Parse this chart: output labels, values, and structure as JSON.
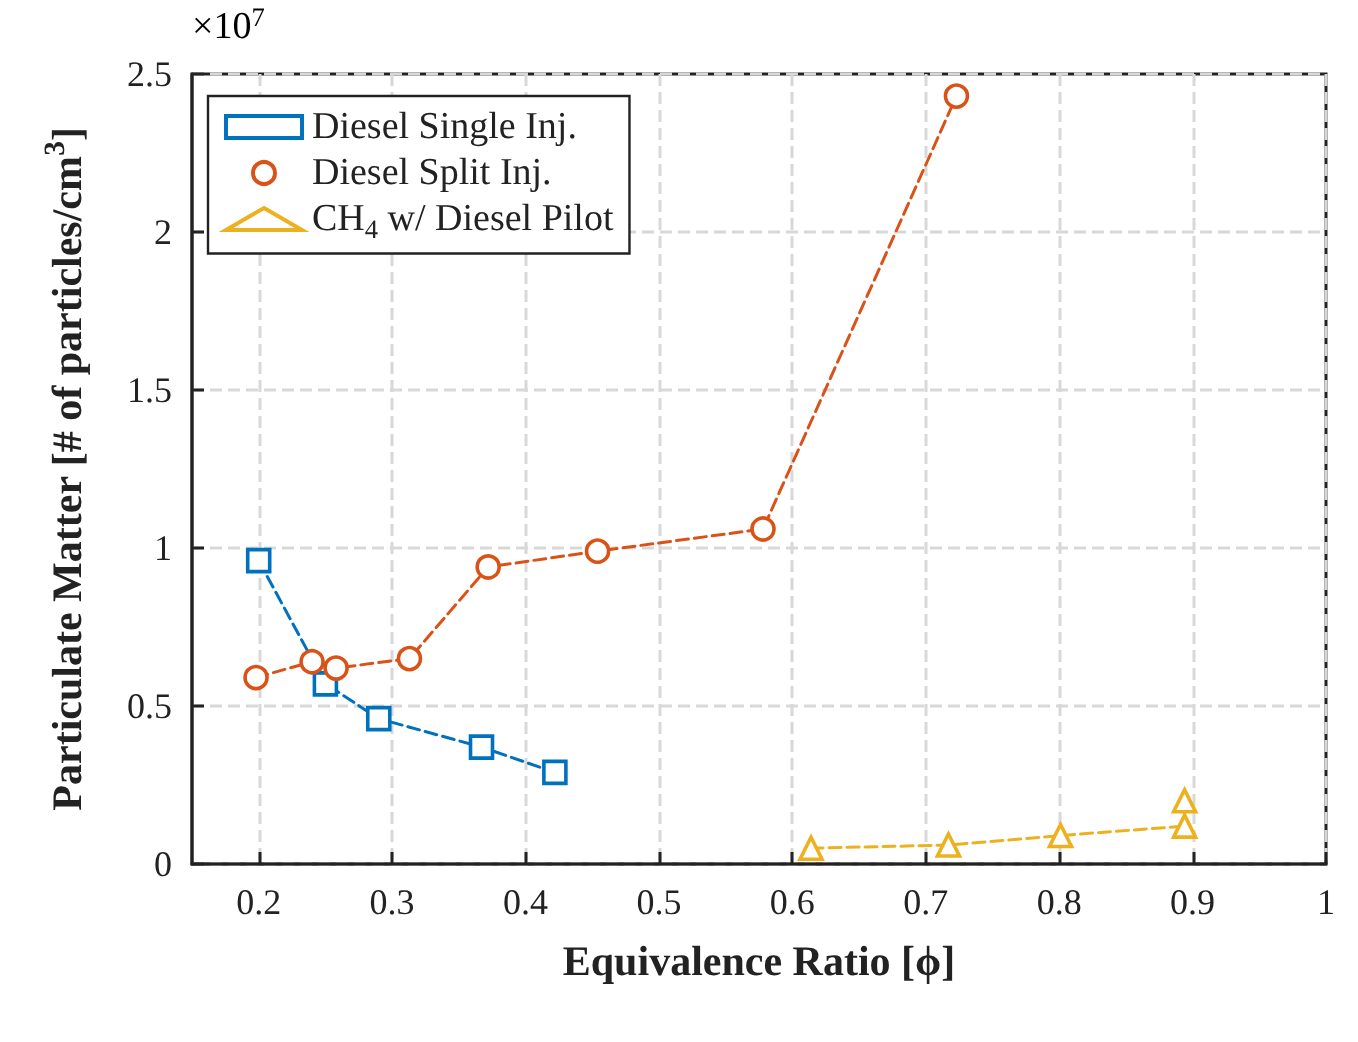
{
  "chart_data": {
    "type": "line",
    "xlabel": "Equivalence Ratio [ϕ]",
    "ylabel": "Particulate Matter [# of particles/cm$^{3}$]",
    "annotations": [
      "×10$^{7}$"
    ],
    "xlim": [
      0.15,
      1
    ],
    "xticks": [
      0.2,
      0.3,
      0.4,
      0.5,
      0.6,
      0.7,
      0.8,
      0.9,
      1
    ],
    "ylim": [
      0,
      2.5
    ],
    "yticks": [
      0,
      0.5,
      1,
      1.5,
      2,
      2.5
    ],
    "grid": true,
    "legend": "top left",
    "line_style": "dashed",
    "series": [
      {
        "name": "Diesel Single Inj.",
        "color": "#0072bd",
        "marker": "square",
        "x": [
          0.2,
          0.25,
          0.29,
          0.367,
          0.422
        ],
        "values": [
          0.96,
          0.57,
          0.46,
          0.37,
          0.29
        ]
      },
      {
        "name": "Diesel Split Inj.",
        "color": "#d95319",
        "marker": "circle",
        "x": [
          0.198,
          0.24,
          0.258,
          0.313,
          0.372,
          0.454,
          0.578,
          0.723
        ],
        "values": [
          0.59,
          0.64,
          0.62,
          0.65,
          0.94,
          0.99,
          1.06,
          2.43
        ]
      },
      {
        "name": "CH$_{4}$ w/ Diesel Pilot",
        "color": "#edb120",
        "marker": "triangle",
        "x": [
          0.614,
          0.717,
          0.801,
          0.894,
          0.894
        ],
        "values": [
          0.05,
          0.06,
          0.09,
          0.12,
          0.2
        ]
      }
    ]
  }
}
